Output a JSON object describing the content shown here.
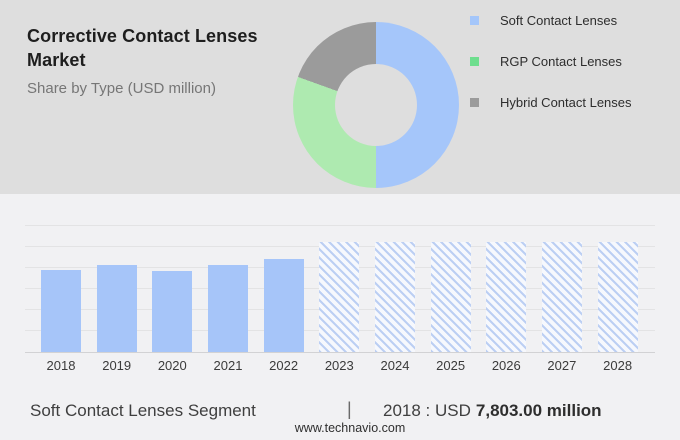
{
  "header": {
    "title": "Corrective Contact Lenses Market",
    "subtitle": "Share by Type (USD million)"
  },
  "legend": {
    "items": [
      {
        "label": "Soft Contact Lenses",
        "swatch_color": "#a4c6fa"
      },
      {
        "label": "RGP Contact Lenses",
        "swatch_color": "#6ede8e"
      },
      {
        "label": "Hybrid Contact Lenses",
        "swatch_color": "#9b9b9b"
      }
    ]
  },
  "footer": {
    "segment_label": "Soft Contact Lenses Segment",
    "separator": "|",
    "value_prefix": "2018 : USD",
    "value_bold": "7,803.00 million",
    "website": "www.technavio.com"
  },
  "colors": {
    "top_bg": "#dedede",
    "bottom_bg": "#f1f1f3",
    "bar_blue": "#a6c5f9",
    "hatch_stripe": "#bccff3",
    "hatch_bg": "#f6f8fd",
    "gridline": "#e3e3e4",
    "axis": "#d2d2d4",
    "donut_blue": "#a5c6fa",
    "donut_green": "#aeeab0",
    "donut_gray": "#9b9b9b"
  },
  "chart_data": [
    {
      "type": "pie",
      "subtype": "donut",
      "title": "Share by Type (USD million)",
      "legend_position": "right",
      "start_angle_deg": 0,
      "direction": "clockwise",
      "slices": [
        {
          "label": "Soft Contact Lenses",
          "percent": 50.0,
          "color": "#a5c6fa"
        },
        {
          "label": "RGP Contact Lenses",
          "percent": 30.5,
          "color": "#aeeab0"
        },
        {
          "label": "Hybrid Contact Lenses",
          "percent": 19.5,
          "color": "#9b9b9b"
        }
      ],
      "note": "percentages estimated from arc angles; no numeric labels shown"
    },
    {
      "type": "bar",
      "categories": [
        "2018",
        "2019",
        "2020",
        "2021",
        "2022",
        "2023",
        "2024",
        "2025",
        "2026",
        "2027",
        "2028"
      ],
      "values": [
        7803,
        8280,
        7710,
        8280,
        8850,
        10470,
        10470,
        10470,
        10470,
        10470,
        10470
      ],
      "value_known": {
        "2018": "USD 7,803.00 million"
      },
      "historical_years": [
        "2018",
        "2019",
        "2020",
        "2021",
        "2022"
      ],
      "forecast_years": [
        "2023",
        "2024",
        "2025",
        "2026",
        "2027",
        "2028"
      ],
      "forecast_style": "hatched",
      "grid": true,
      "gridline_count": 6,
      "xlabel": "",
      "ylabel": "",
      "note": "y-axis has no tick labels; values other than 2018 estimated from relative bar heights anchored to 2018 = 7803"
    }
  ]
}
